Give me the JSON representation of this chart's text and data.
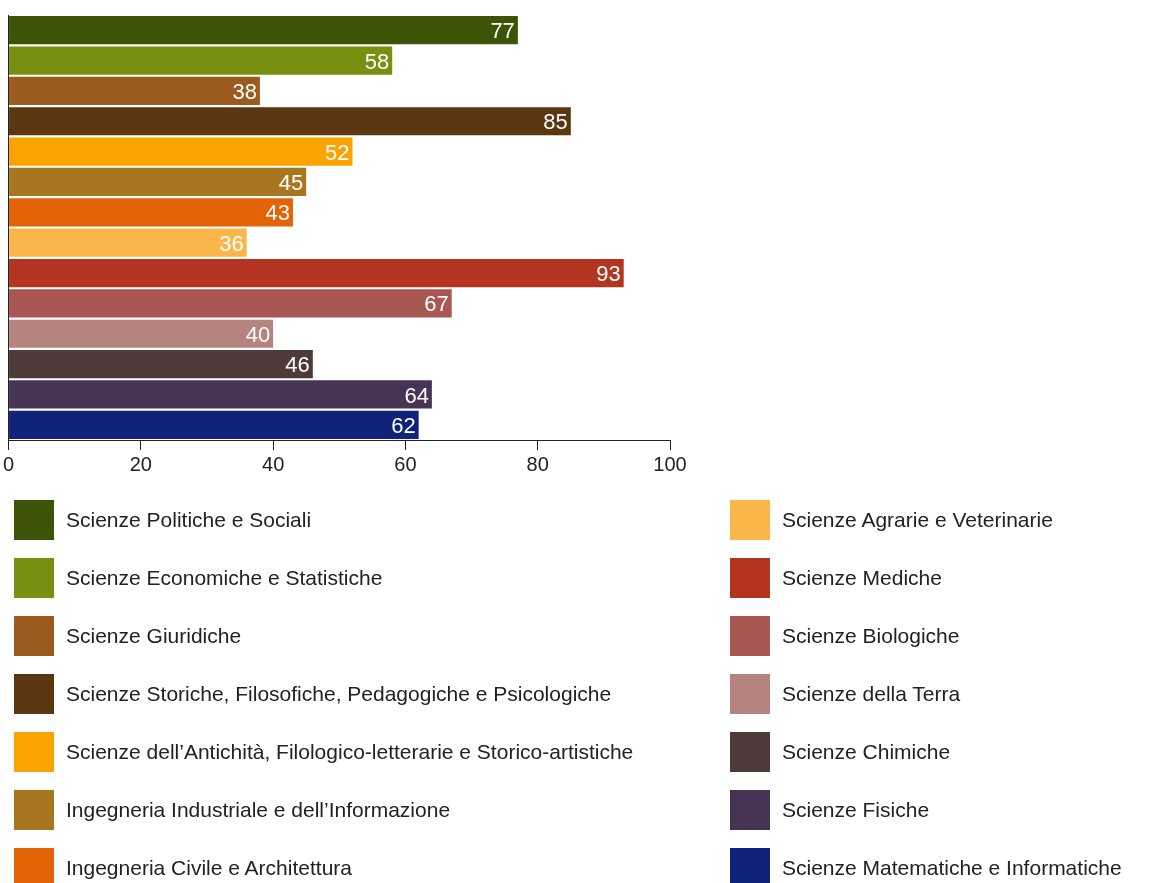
{
  "chart_data": {
    "type": "bar",
    "orientation": "horizontal",
    "stacked": true,
    "data_labels": true,
    "grid": false,
    "legend": "bottom",
    "categories": [
      null,
      null,
      null,
      null,
      null,
      null,
      null,
      null,
      null,
      null,
      null,
      null,
      null,
      null
    ],
    "xlim": [
      0,
      100
    ],
    "xticks": [
      0,
      20,
      40,
      60,
      80,
      100
    ],
    "series": [
      {
        "name": "Scienze Politiche e Sociali",
        "color": "#3d5406",
        "values": [
          77,
          null,
          null,
          null,
          null,
          null,
          null,
          null,
          null,
          null,
          null,
          null,
          null,
          null
        ]
      },
      {
        "name": "Scienze Economiche e Statistiche",
        "color": "#78900f",
        "values": [
          null,
          58,
          null,
          null,
          null,
          null,
          null,
          null,
          null,
          null,
          null,
          null,
          null,
          null
        ]
      },
      {
        "name": "Scienze Giuridiche",
        "color": "#9b5a1e",
        "values": [
          null,
          null,
          38,
          null,
          null,
          null,
          null,
          null,
          null,
          null,
          null,
          null,
          null,
          null
        ]
      },
      {
        "name": "Scienze Storiche, Filosofiche, Pedagogiche e Psicologiche",
        "color": "#5a3710",
        "values": [
          null,
          null,
          null,
          85,
          null,
          null,
          null,
          null,
          null,
          null,
          null,
          null,
          null,
          null
        ]
      },
      {
        "name": "Scienze dell’Antichità, Filologico-letterarie e Storico-artistiche",
        "color": "#fba300",
        "values": [
          null,
          null,
          null,
          null,
          52,
          null,
          null,
          null,
          null,
          null,
          null,
          null,
          null,
          null
        ]
      },
      {
        "name": "Ingegneria Industriale e dell’Informazione",
        "color": "#a8761e",
        "values": [
          null,
          null,
          null,
          null,
          null,
          45,
          null,
          null,
          null,
          null,
          null,
          null,
          null,
          null
        ]
      },
      {
        "name": "Ingegneria Civile e Architettura",
        "color": "#e36306",
        "values": [
          null,
          null,
          null,
          null,
          null,
          null,
          43,
          null,
          null,
          null,
          null,
          null,
          null,
          null
        ]
      },
      {
        "name": "Scienze Agrarie e Veterinarie",
        "color": "#fab64a",
        "values": [
          null,
          null,
          null,
          null,
          null,
          null,
          null,
          36,
          null,
          null,
          null,
          null,
          null,
          null
        ]
      },
      {
        "name": "Scienze Mediche",
        "color": "#b33421",
        "values": [
          null,
          null,
          null,
          null,
          null,
          null,
          null,
          null,
          93,
          null,
          null,
          null,
          null,
          null
        ]
      },
      {
        "name": "Scienze Biologiche",
        "color": "#a85753",
        "values": [
          null,
          null,
          null,
          null,
          null,
          null,
          null,
          null,
          null,
          67,
          null,
          null,
          null,
          null
        ]
      },
      {
        "name": "Scienze della Terra",
        "color": "#b5847e",
        "values": [
          null,
          null,
          null,
          null,
          null,
          null,
          null,
          null,
          null,
          null,
          40,
          null,
          null,
          null
        ]
      },
      {
        "name": "Scienze Chimiche",
        "color": "#4e3a38",
        "values": [
          null,
          null,
          null,
          null,
          null,
          null,
          null,
          null,
          null,
          null,
          null,
          46,
          null,
          null
        ]
      },
      {
        "name": "Scienze Fisiche",
        "color": "#463454",
        "values": [
          null,
          null,
          null,
          null,
          null,
          null,
          null,
          null,
          null,
          null,
          null,
          null,
          64,
          null
        ]
      },
      {
        "name": "Scienze Matematiche e Informatiche",
        "color": "#10227a",
        "values": [
          null,
          null,
          null,
          null,
          null,
          null,
          null,
          null,
          null,
          null,
          null,
          null,
          null,
          62
        ]
      }
    ]
  }
}
